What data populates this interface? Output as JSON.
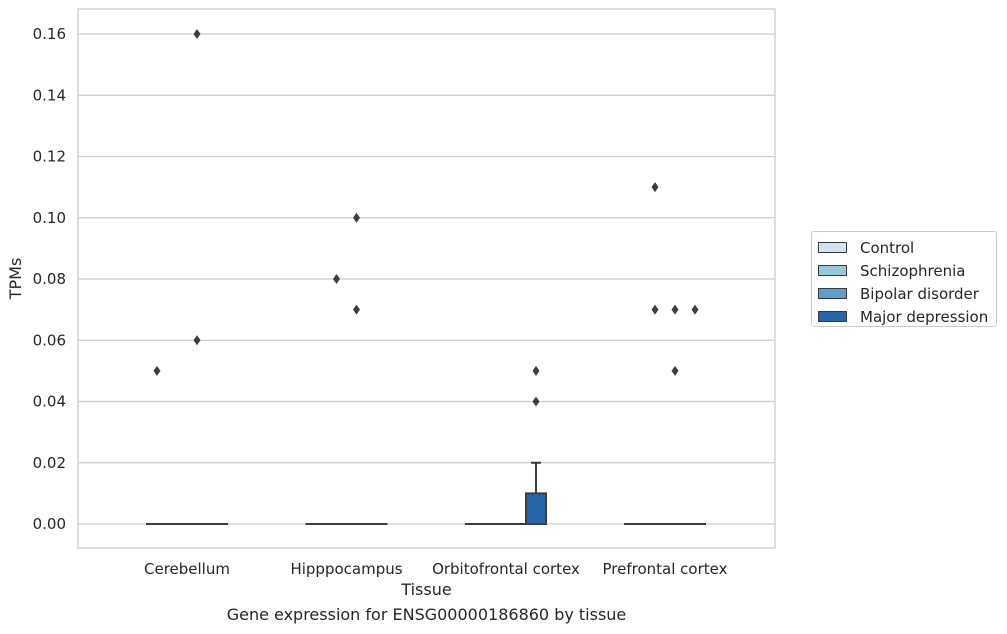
{
  "chart_data": {
    "type": "boxplot",
    "title": "",
    "caption": "Gene expression for ENSG00000186860 by tissue",
    "xlabel": "Tissue",
    "ylabel": "TPMs",
    "ylim": [
      -0.008,
      0.168
    ],
    "yticks": [
      0.0,
      0.02,
      0.04,
      0.06,
      0.08,
      0.1,
      0.12,
      0.14,
      0.16
    ],
    "ytick_labels": [
      "0.00",
      "0.02",
      "0.04",
      "0.06",
      "0.08",
      "0.10",
      "0.12",
      "0.14",
      "0.16"
    ],
    "grid": true,
    "legend_position": "outside-right",
    "categories": [
      "Cerebellum",
      "Hipppocampus",
      "Orbitofrontal cortex",
      "Prefrontal cortex"
    ],
    "series": [
      {
        "name": "Control",
        "color": "#d2e3f3",
        "boxes": [
          {
            "q1": 0,
            "median": 0,
            "q3": 0,
            "whisker_low": 0,
            "whisker_high": 0,
            "outliers": [
              0.05
            ]
          },
          {
            "q1": 0,
            "median": 0,
            "q3": 0,
            "whisker_low": 0,
            "whisker_high": 0,
            "outliers": []
          },
          {
            "q1": 0,
            "median": 0,
            "q3": 0,
            "whisker_low": 0,
            "whisker_high": 0,
            "outliers": []
          },
          {
            "q1": 0,
            "median": 0,
            "q3": 0,
            "whisker_low": 0,
            "whisker_high": 0,
            "outliers": []
          }
        ]
      },
      {
        "name": "Schizophrenia",
        "color": "#9ac7e0",
        "boxes": [
          {
            "q1": 0,
            "median": 0,
            "q3": 0,
            "whisker_low": 0,
            "whisker_high": 0,
            "outliers": []
          },
          {
            "q1": 0,
            "median": 0,
            "q3": 0,
            "whisker_low": 0,
            "whisker_high": 0,
            "outliers": [
              0.08
            ]
          },
          {
            "q1": 0,
            "median": 0,
            "q3": 0,
            "whisker_low": 0,
            "whisker_high": 0,
            "outliers": []
          },
          {
            "q1": 0,
            "median": 0,
            "q3": 0,
            "whisker_low": 0,
            "whisker_high": 0,
            "outliers": [
              0.11,
              0.07
            ]
          }
        ]
      },
      {
        "name": "Bipolar disorder",
        "color": "#5a9fcd",
        "boxes": [
          {
            "q1": 0,
            "median": 0,
            "q3": 0,
            "whisker_low": 0,
            "whisker_high": 0,
            "outliers": [
              0.16,
              0.06
            ]
          },
          {
            "q1": 0,
            "median": 0,
            "q3": 0,
            "whisker_low": 0,
            "whisker_high": 0,
            "outliers": [
              0.1,
              0.07
            ]
          },
          {
            "q1": 0,
            "median": 0,
            "q3": 0,
            "whisker_low": 0,
            "whisker_high": 0,
            "outliers": []
          },
          {
            "q1": 0,
            "median": 0,
            "q3": 0,
            "whisker_low": 0,
            "whisker_high": 0,
            "outliers": [
              0.05,
              0.07
            ]
          }
        ]
      },
      {
        "name": "Major depression",
        "color": "#2466a8",
        "boxes": [
          {
            "q1": 0,
            "median": 0,
            "q3": 0,
            "whisker_low": 0,
            "whisker_high": 0,
            "outliers": []
          },
          {
            "q1": 0,
            "median": 0,
            "q3": 0,
            "whisker_low": 0,
            "whisker_high": 0,
            "outliers": []
          },
          {
            "q1": 0,
            "median": 0,
            "q3": 0.01,
            "whisker_low": 0,
            "whisker_high": 0.02,
            "outliers": [
              0.05,
              0.04
            ]
          },
          {
            "q1": 0,
            "median": 0,
            "q3": 0,
            "whisker_low": 0,
            "whisker_high": 0,
            "outliers": [
              0.07
            ]
          }
        ]
      }
    ]
  }
}
